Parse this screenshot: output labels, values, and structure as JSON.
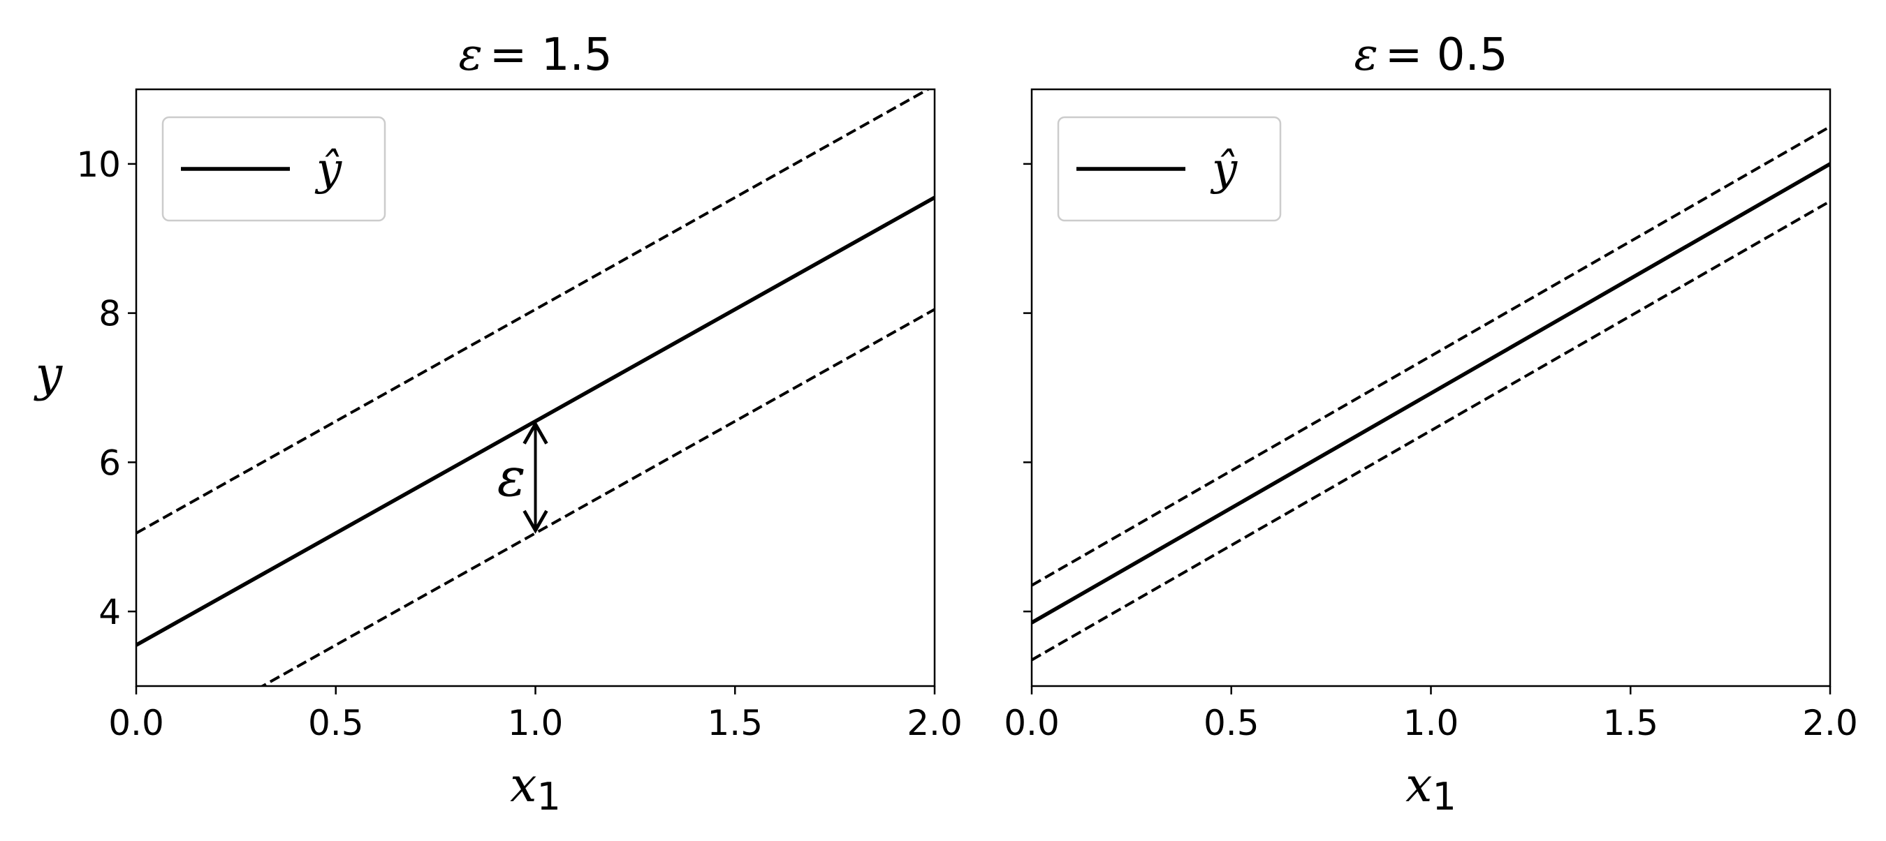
{
  "chart_data": [
    {
      "type": "line",
      "title_symbol": "ε",
      "title_value": "= 1.5",
      "xlabel_base": "x",
      "xlabel_sub": "1",
      "ylabel": "y",
      "xlim": [
        0.0,
        2.0
      ],
      "ylim": [
        3.0,
        11.0
      ],
      "xticks": [
        "0.0",
        "0.5",
        "1.0",
        "1.5",
        "2.0"
      ],
      "yticks": [
        "4",
        "6",
        "8",
        "10"
      ],
      "epsilon": 1.5,
      "series": [
        {
          "name": "ŷ",
          "style": "solid",
          "x": [
            0.0,
            2.0
          ],
          "y": [
            3.55,
            9.55
          ]
        },
        {
          "style": "dashed",
          "x": [
            0.0,
            2.0
          ],
          "y": [
            5.05,
            11.05
          ]
        },
        {
          "style": "dashed",
          "x": [
            0.0,
            2.0
          ],
          "y": [
            2.05,
            8.05
          ]
        }
      ],
      "annotation": {
        "text": "ε",
        "x": 1.0,
        "y_from": 5.05,
        "y_to": 6.55,
        "arrow": "double"
      },
      "legend": {
        "position": "top-left",
        "entries": [
          "ŷ"
        ]
      }
    },
    {
      "type": "line",
      "title_symbol": "ε",
      "title_value": "= 0.5",
      "xlabel_base": "x",
      "xlabel_sub": "1",
      "ylabel": "",
      "xlim": [
        0.0,
        2.0
      ],
      "ylim": [
        3.0,
        11.0
      ],
      "xticks": [
        "0.0",
        "0.5",
        "1.0",
        "1.5",
        "2.0"
      ],
      "yticks": [],
      "epsilon": 0.5,
      "series": [
        {
          "name": "ŷ",
          "style": "solid",
          "x": [
            0.0,
            2.0
          ],
          "y": [
            3.85,
            10.0
          ]
        },
        {
          "style": "dashed",
          "x": [
            0.0,
            2.0
          ],
          "y": [
            4.35,
            10.5
          ]
        },
        {
          "style": "dashed",
          "x": [
            0.0,
            2.0
          ],
          "y": [
            3.35,
            9.5
          ]
        }
      ],
      "legend": {
        "position": "top-left",
        "entries": [
          "ŷ"
        ]
      }
    }
  ]
}
